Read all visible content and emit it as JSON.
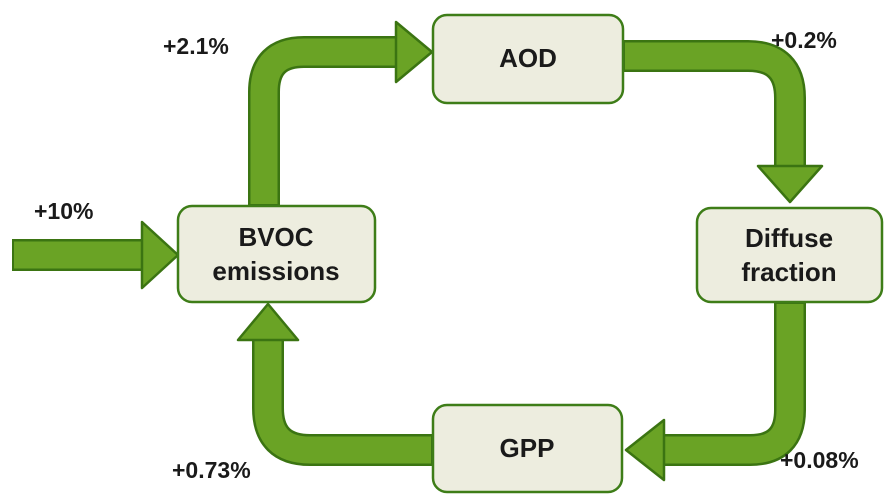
{
  "nodes": [
    {
      "lines": [
        "AOD"
      ]
    },
    {
      "lines": [
        "BVOC",
        "emissions"
      ]
    },
    {
      "lines": [
        "Diffuse",
        "fraction"
      ]
    },
    {
      "lines": [
        "GPP"
      ]
    }
  ],
  "edges": [
    {
      "label": "+10%"
    },
    {
      "label": "+2.1%"
    },
    {
      "label": "+0.2%"
    },
    {
      "label": "+0.08%"
    },
    {
      "label": "+0.73%"
    }
  ]
}
